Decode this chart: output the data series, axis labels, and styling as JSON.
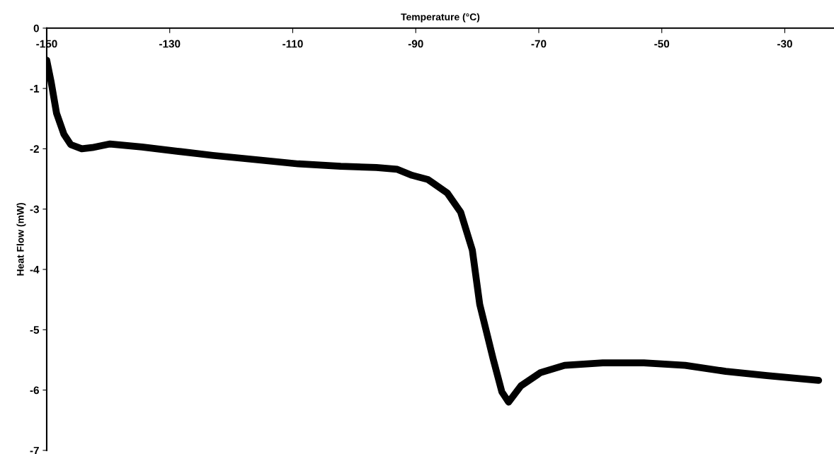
{
  "chart_data": {
    "type": "line",
    "xlabel": "Temperature (°C)",
    "ylabel": "Heat Flow (mW)",
    "xlim": [
      -150,
      -22
    ],
    "xticks": [
      -150,
      -130,
      -110,
      -90,
      -70,
      -50,
      -30
    ],
    "ylim": [
      -7,
      0
    ],
    "yticks": [
      0,
      -1,
      -2,
      -3,
      -4,
      -5,
      -6,
      -7
    ],
    "grid": false,
    "marker": "none",
    "line_style": "solid",
    "series": [
      {
        "color": "#000000",
        "x": [
          -150,
          -149.3,
          -148.4,
          -147.2,
          -146.1,
          -144.3,
          -142.6,
          -139.7,
          -134.5,
          -128.8,
          -123,
          -116,
          -109.1,
          -102.2,
          -96.4,
          -93,
          -90.6,
          -88,
          -84.9,
          -82.7,
          -80.8,
          -79.6,
          -77.4,
          -76,
          -74.9,
          -72.9,
          -69.7,
          -65.8,
          -59.6,
          -52.9,
          -46.2,
          -39.6,
          -32.9,
          -24.5
        ],
        "values": [
          -0.53,
          -0.88,
          -1.41,
          -1.76,
          -1.93,
          -2.0,
          -1.98,
          -1.92,
          -1.97,
          -2.04,
          -2.11,
          -2.18,
          -2.25,
          -2.29,
          -2.31,
          -2.34,
          -2.44,
          -2.51,
          -2.73,
          -3.05,
          -3.68,
          -4.58,
          -5.49,
          -6.03,
          -6.2,
          -5.93,
          -5.71,
          -5.59,
          -5.55,
          -5.55,
          -5.59,
          -5.69,
          -5.76,
          -5.84
        ]
      }
    ]
  }
}
